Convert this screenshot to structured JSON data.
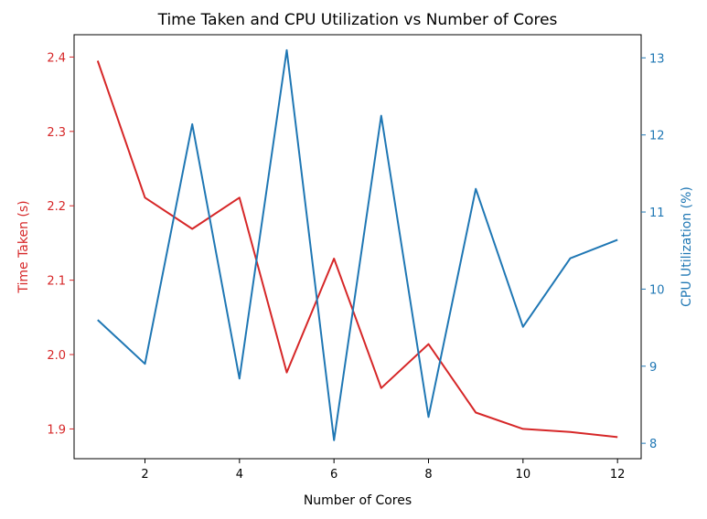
{
  "chart_data": {
    "type": "line",
    "title": "Time Taken and CPU Utilization vs Number of Cores",
    "xlabel": "Number of Cores",
    "ylabel_left": "Time Taken (s)",
    "ylabel_right": "CPU Utilization (%)",
    "xlim": [
      0.5,
      12.5
    ],
    "ylim_left": [
      1.86,
      2.43
    ],
    "ylim_right": [
      7.8,
      13.3
    ],
    "xticks": [
      2,
      4,
      6,
      8,
      10,
      12
    ],
    "yticks_left": [
      1.9,
      2.0,
      2.1,
      2.2,
      2.3,
      2.4
    ],
    "yticks_left_labels": [
      "1.9",
      "2.0",
      "2.1",
      "2.2",
      "2.3",
      "2.4"
    ],
    "yticks_right": [
      8,
      9,
      10,
      11,
      12,
      13
    ],
    "grid": false,
    "legend": "none",
    "x": [
      1,
      2,
      3,
      4,
      5,
      6,
      7,
      8,
      9,
      10,
      11,
      12
    ],
    "series": [
      {
        "axis": "left",
        "color": "#d62728",
        "values": [
          2.395,
          2.211,
          2.169,
          2.211,
          1.976,
          2.129,
          1.955,
          2.014,
          1.922,
          1.9,
          1.896,
          1.889
        ]
      },
      {
        "axis": "right",
        "color": "#1f77b4",
        "values": [
          9.6,
          9.03,
          12.14,
          8.84,
          13.1,
          8.04,
          12.25,
          8.34,
          11.3,
          9.51,
          10.4,
          10.64
        ]
      }
    ]
  }
}
